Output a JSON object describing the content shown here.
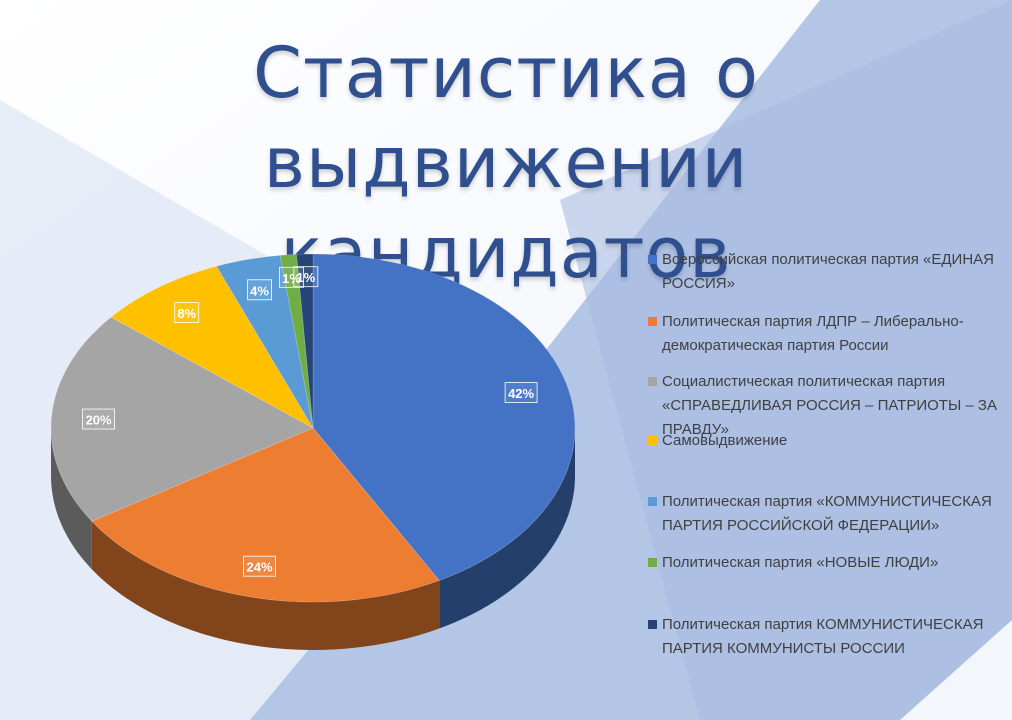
{
  "title": {
    "line1": "Статистика о выдвижении",
    "line2": "кандидатов"
  },
  "chart_data": {
    "type": "pie",
    "title": "Статистика о выдвижении кандидатов",
    "legend_position": "right",
    "slices": [
      {
        "name": "Всероссийская политическая партия «ЕДИНАЯ РОССИЯ»",
        "value": 42,
        "label": "42%",
        "color": "#4472c4"
      },
      {
        "name": "Политическая партия ЛДПР – Либерально-демократическая партия России",
        "value": 24,
        "label": "24%",
        "color": "#ed7d31"
      },
      {
        "name": "Социалистическая политическая партия «СПРАВЕДЛИВАЯ РОССИЯ – ПАТРИОТЫ – ЗА ПРАВДУ»",
        "value": 20,
        "label": "20%",
        "color": "#a5a5a5"
      },
      {
        "name": "Самовыдвижение",
        "value": 8,
        "label": "8%",
        "color": "#ffc000"
      },
      {
        "name": "Политическая партия «КОММУНИСТИЧЕСКАЯ ПАРТИЯ РОССИЙСКОЙ ФЕДЕРАЦИИ»",
        "value": 4,
        "label": "4%",
        "color": "#5b9bd5"
      },
      {
        "name": "Политическая партия «НОВЫЕ ЛЮДИ»",
        "value": 1,
        "label": "1%",
        "color": "#70ad47"
      },
      {
        "name": "Политическая партия КОММУНИСТИЧЕСКАЯ ПАРТИЯ КОММУНИСТЫ РОССИИ",
        "value": 1,
        "label": "1%",
        "color": "#264478"
      }
    ]
  }
}
